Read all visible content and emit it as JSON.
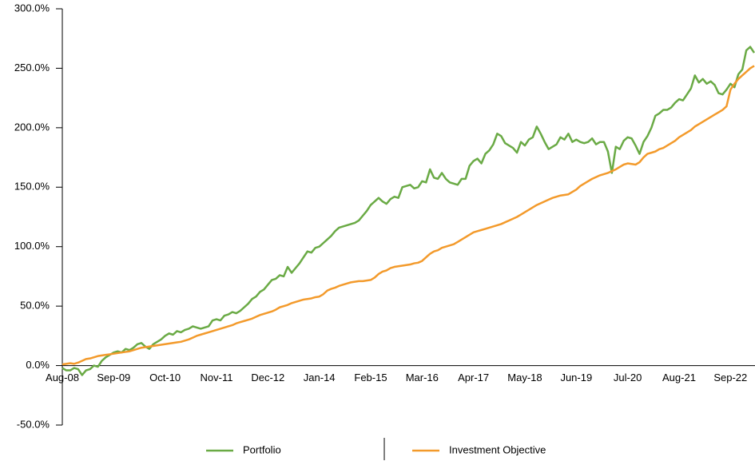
{
  "chart_data": {
    "type": "line",
    "categories": [
      "Aug-08",
      null,
      null,
      null,
      null,
      null,
      null,
      null,
      null,
      null,
      null,
      null,
      null,
      "Sep-09",
      null,
      null,
      null,
      null,
      null,
      null,
      null,
      null,
      null,
      null,
      null,
      null,
      "Oct-10",
      null,
      null,
      null,
      null,
      null,
      null,
      null,
      null,
      null,
      null,
      null,
      null,
      "Nov-11",
      null,
      null,
      null,
      null,
      null,
      null,
      null,
      null,
      null,
      null,
      null,
      null,
      "Dec-12",
      null,
      null,
      null,
      null,
      null,
      null,
      null,
      null,
      null,
      null,
      null,
      null,
      "Jan-14",
      null,
      null,
      null,
      null,
      null,
      null,
      null,
      null,
      null,
      null,
      null,
      null,
      "Feb-15",
      null,
      null,
      null,
      null,
      null,
      null,
      null,
      null,
      null,
      null,
      null,
      null,
      "Mar-16",
      null,
      null,
      null,
      null,
      null,
      null,
      null,
      null,
      null,
      null,
      null,
      null,
      "Apr-17",
      null,
      null,
      null,
      null,
      null,
      null,
      null,
      null,
      null,
      null,
      null,
      null,
      "May-18",
      null,
      null,
      null,
      null,
      null,
      null,
      null,
      null,
      null,
      null,
      null,
      null,
      "Jun-19",
      null,
      null,
      null,
      null,
      null,
      null,
      null,
      null,
      null,
      null,
      null,
      null,
      "Jul-20",
      null,
      null,
      null,
      null,
      null,
      null,
      null,
      null,
      null,
      null,
      null,
      null,
      "Aug-21",
      null,
      null,
      null,
      null,
      null,
      null,
      null,
      null,
      null,
      null,
      null,
      null,
      "Sep-22",
      null,
      null,
      null,
      null,
      null,
      null
    ],
    "series": [
      {
        "name": "Portfolio",
        "color": "#6aaa45",
        "values": [
          -2,
          -4,
          -4,
          -2,
          -3,
          -8,
          -4,
          -3,
          0,
          -1,
          4,
          7,
          9,
          11,
          12,
          11,
          14,
          13,
          15,
          18,
          19,
          16,
          14,
          18,
          20,
          22,
          25,
          27,
          26,
          29,
          28,
          30,
          31,
          33,
          32,
          31,
          32,
          33,
          38,
          39,
          38,
          42,
          43,
          45,
          44,
          46,
          49,
          52,
          56,
          58,
          62,
          64,
          68,
          72,
          73,
          76,
          75,
          83,
          78,
          82,
          86,
          91,
          96,
          95,
          99,
          100,
          103,
          106,
          109,
          113,
          116,
          117,
          118,
          119,
          120,
          122,
          126,
          130,
          135,
          138,
          141,
          138,
          136,
          140,
          142,
          141,
          150,
          151,
          152,
          149,
          150,
          155,
          154,
          165,
          158,
          157,
          162,
          157,
          154,
          153,
          152,
          157,
          157,
          168,
          172,
          174,
          170,
          178,
          181,
          186,
          195,
          193,
          187,
          185,
          183,
          179,
          188,
          185,
          190,
          192,
          201,
          195,
          188,
          182,
          184,
          186,
          192,
          190,
          195,
          188,
          190,
          188,
          187,
          188,
          191,
          186,
          188,
          188,
          180,
          162,
          184,
          182,
          189,
          192,
          191,
          185,
          178,
          188,
          193,
          200,
          210,
          212,
          215,
          215,
          217,
          221,
          224,
          223,
          228,
          233,
          244,
          238,
          241,
          237,
          239,
          236,
          229,
          228,
          232,
          237,
          234,
          245,
          249,
          265,
          268,
          263
        ]
      },
      {
        "name": "Investment Objective",
        "color": "#f39a2b",
        "values": [
          1,
          1.5,
          2,
          1.5,
          2.5,
          4,
          5.5,
          6,
          7,
          8,
          8.5,
          9,
          9.5,
          10,
          10.5,
          11,
          11.5,
          12,
          13,
          14,
          15,
          15.5,
          16,
          16.5,
          17,
          17.5,
          18,
          18.5,
          19,
          19.5,
          20,
          21,
          22,
          23.5,
          25,
          26,
          27,
          28,
          29,
          30,
          31,
          32,
          33,
          34,
          35.5,
          36.5,
          37.5,
          38.5,
          39.5,
          41,
          42.5,
          43.5,
          44.5,
          45.5,
          47,
          49,
          50,
          51,
          52.5,
          53.5,
          54.5,
          55.5,
          56,
          56.5,
          57.5,
          58,
          60,
          63,
          64.5,
          65.5,
          67,
          68,
          69,
          70,
          70.5,
          71,
          71,
          71.5,
          72,
          74,
          77,
          79,
          80,
          82,
          83,
          83.5,
          84,
          84.5,
          85,
          86,
          86.5,
          88,
          91,
          94,
          96,
          97,
          99,
          100,
          101,
          102,
          104,
          106,
          108,
          110,
          112,
          113,
          114,
          115,
          116,
          117,
          118,
          119,
          120.5,
          122,
          123.5,
          125,
          127,
          129,
          131,
          133,
          135,
          136.5,
          138,
          139.5,
          141,
          142,
          143,
          143.5,
          144,
          146,
          148,
          151,
          153,
          155,
          157,
          158.5,
          160,
          161,
          162,
          163.5,
          165,
          167,
          169,
          170,
          169.5,
          169,
          171,
          175,
          178,
          179,
          180,
          182,
          183,
          185,
          187,
          189,
          192,
          194,
          196,
          198,
          201,
          203,
          205,
          207,
          209,
          211,
          213,
          215,
          218,
          232,
          237,
          241,
          244,
          247,
          250,
          252
        ]
      }
    ],
    "ylim": [
      -50,
      300
    ],
    "yticks": [
      {
        "value": -50,
        "label": "-50.0%"
      },
      {
        "value": 0,
        "label": "0.0%"
      },
      {
        "value": 50,
        "label": "50.0%"
      },
      {
        "value": 100,
        "label": "100.0%"
      },
      {
        "value": 150,
        "label": "150.0%"
      },
      {
        "value": 200,
        "label": "200.0%"
      },
      {
        "value": 250,
        "label": "250.0%"
      },
      {
        "value": 300,
        "label": "300.0%"
      }
    ],
    "legend": "bottom"
  }
}
